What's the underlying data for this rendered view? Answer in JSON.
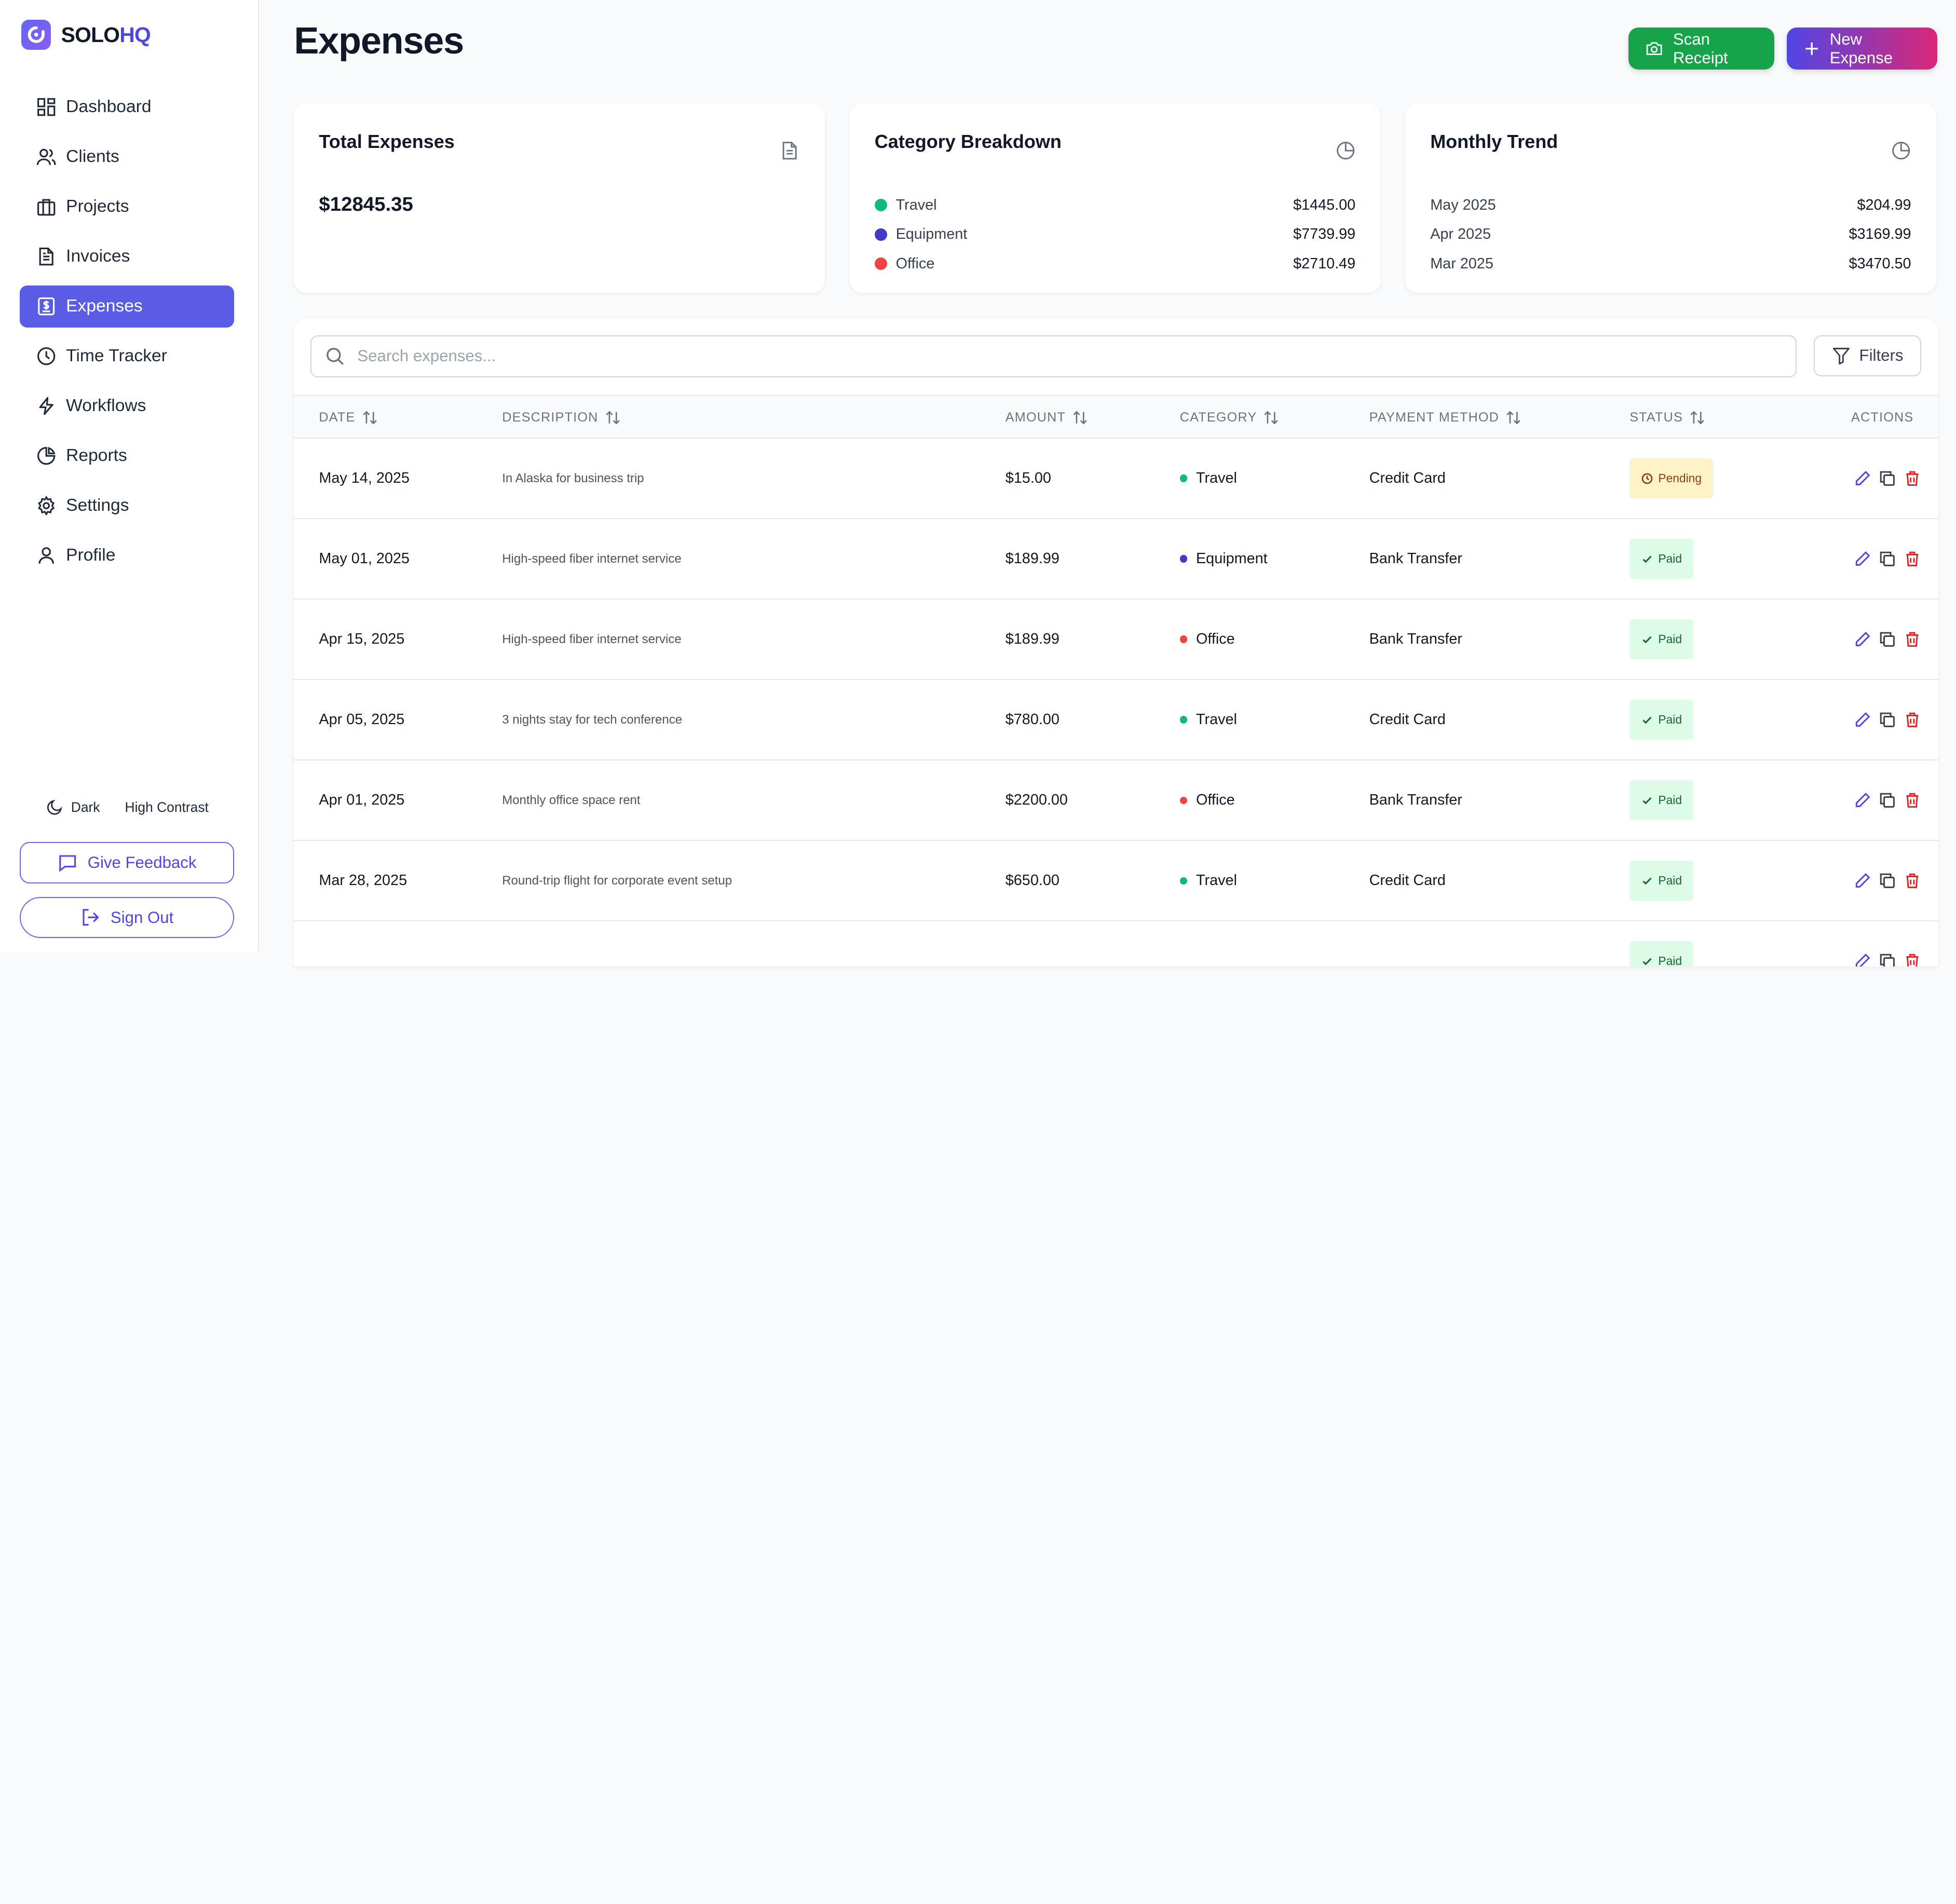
{
  "brand": {
    "part1": "SOLO",
    "part2": "HQ"
  },
  "nav": [
    {
      "label": "Dashboard",
      "icon": "dashboard-icon"
    },
    {
      "label": "Clients",
      "icon": "users-icon"
    },
    {
      "label": "Projects",
      "icon": "briefcase-icon"
    },
    {
      "label": "Invoices",
      "icon": "document-icon"
    },
    {
      "label": "Expenses",
      "icon": "receipt-dollar-icon",
      "active": true
    },
    {
      "label": "Time Tracker",
      "icon": "clock-icon"
    },
    {
      "label": "Workflows",
      "icon": "lightning-icon"
    },
    {
      "label": "Reports",
      "icon": "pie-chart-icon"
    },
    {
      "label": "Settings",
      "icon": "gear-icon"
    },
    {
      "label": "Profile",
      "icon": "user-icon"
    }
  ],
  "theme": {
    "dark_label": "Dark",
    "contrast_label": "High Contrast"
  },
  "sidebar_buttons": {
    "feedback": "Give Feedback",
    "signout": "Sign Out"
  },
  "header": {
    "title": "Expenses",
    "scan_label": "Scan Receipt",
    "new_label": "New Expense"
  },
  "cards": {
    "total": {
      "title": "Total Expenses",
      "value": "$12845.35"
    },
    "category": {
      "title": "Category Breakdown",
      "items": [
        {
          "label": "Travel",
          "value": "$1445.00",
          "color": "#10b981"
        },
        {
          "label": "Equipment",
          "value": "$7739.99",
          "color": "#4338ca"
        },
        {
          "label": "Office",
          "value": "$2710.49",
          "color": "#ef4444"
        }
      ]
    },
    "trend": {
      "title": "Monthly Trend",
      "items": [
        {
          "label": "May 2025",
          "value": "$204.99"
        },
        {
          "label": "Apr 2025",
          "value": "$3169.99"
        },
        {
          "label": "Mar 2025",
          "value": "$3470.50"
        }
      ]
    }
  },
  "search": {
    "placeholder": "Search expenses...",
    "value": ""
  },
  "filters_label": "Filters",
  "table": {
    "headers": {
      "date": "DATE",
      "description": "DESCRIPTION",
      "amount": "AMOUNT",
      "category": "CATEGORY",
      "payment": "PAYMENT METHOD",
      "status": "STATUS",
      "actions": "ACTIONS"
    },
    "rows": [
      {
        "date": "May 14, 2025",
        "description": "In Alaska for business trip",
        "amount": "$15.00",
        "category": "Travel",
        "cat_color": "#10b981",
        "payment": "Credit Card",
        "status": "Pending"
      },
      {
        "date": "May 01, 2025",
        "description": "High-speed fiber internet service",
        "amount": "$189.99",
        "category": "Equipment",
        "cat_color": "#4338ca",
        "payment": "Bank Transfer",
        "status": "Paid"
      },
      {
        "date": "Apr 15, 2025",
        "description": "High-speed fiber internet service",
        "amount": "$189.99",
        "category": "Office",
        "cat_color": "#ef4444",
        "payment": "Bank Transfer",
        "status": "Paid"
      },
      {
        "date": "Apr 05, 2025",
        "description": "3 nights stay for tech conference",
        "amount": "$780.00",
        "category": "Travel",
        "cat_color": "#10b981",
        "payment": "Credit Card",
        "status": "Paid"
      },
      {
        "date": "Apr 01, 2025",
        "description": "Monthly office space rent",
        "amount": "$2200.00",
        "category": "Office",
        "cat_color": "#ef4444",
        "payment": "Bank Transfer",
        "status": "Paid"
      },
      {
        "date": "Mar 28, 2025",
        "description": "Round-trip flight for corporate event setup",
        "amount": "$650.00",
        "category": "Travel",
        "cat_color": "#10b981",
        "payment": "Credit Card",
        "status": "Paid"
      },
      {
        "date": "",
        "description": "",
        "amount": "",
        "category": "",
        "cat_color": "",
        "payment": "",
        "status": "Paid"
      }
    ]
  }
}
